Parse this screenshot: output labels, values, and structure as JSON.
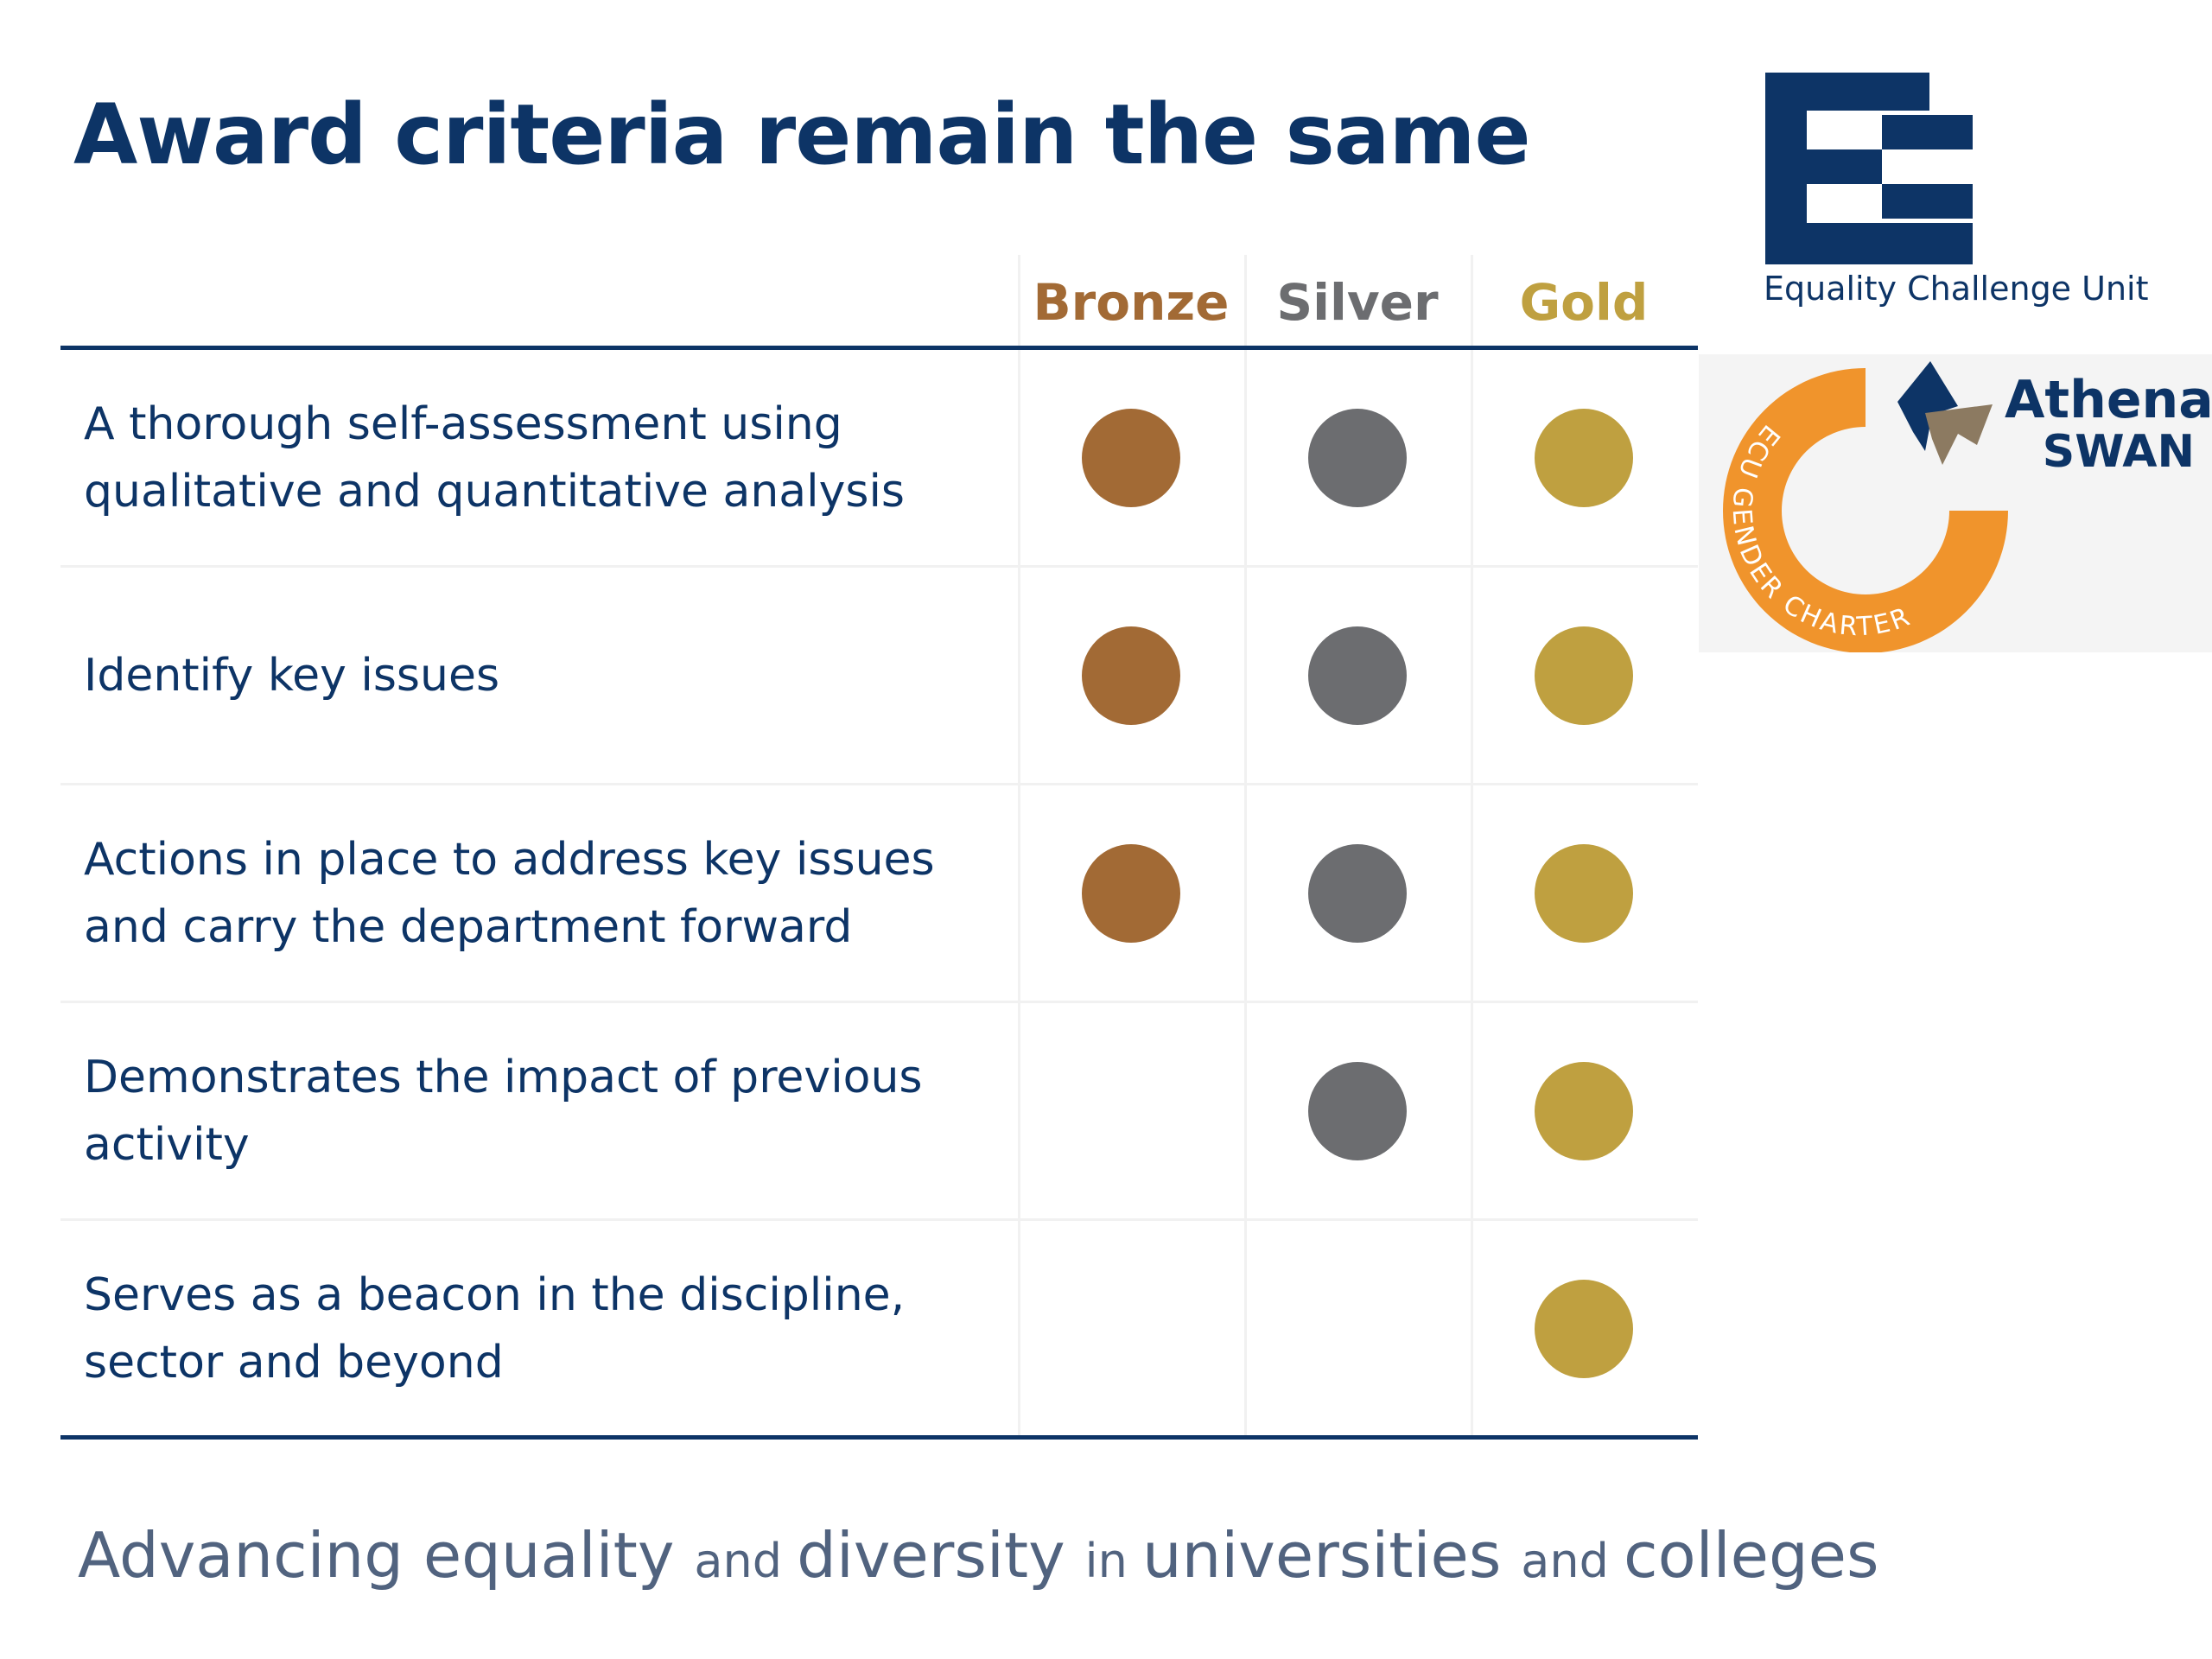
{
  "slide": {
    "title": "Award criteria remain the same",
    "tagline": [
      {
        "text": "Advancing ",
        "size": "big"
      },
      {
        "text": "equality ",
        "size": "big"
      },
      {
        "text": "and ",
        "size": "small"
      },
      {
        "text": "diversity ",
        "size": "big"
      },
      {
        "text": "in ",
        "size": "small"
      },
      {
        "text": "universities ",
        "size": "big"
      },
      {
        "text": "and ",
        "size": "small"
      },
      {
        "text": "colleges",
        "size": "big"
      }
    ]
  },
  "table": {
    "columns": [
      {
        "label": "Bronze",
        "color": "#a26a35"
      },
      {
        "label": "Silver",
        "color": "#6c6d70"
      },
      {
        "label": "Gold",
        "color": "#bfa040"
      }
    ],
    "medal_colors": {
      "bronze": "#a26a35",
      "silver": "#6c6d70",
      "gold": "#bfa040"
    },
    "rows": [
      {
        "criterion": "A thorough self-assessment using qualitative and quantitative analysis",
        "bronze": true,
        "silver": true,
        "gold": true
      },
      {
        "criterion": "Identify key issues",
        "bronze": true,
        "silver": true,
        "gold": true
      },
      {
        "criterion": "Actions in place to address key issues and carry the department forward",
        "bronze": true,
        "silver": true,
        "gold": true
      },
      {
        "criterion": "Demonstrates the impact of previous activity",
        "bronze": false,
        "silver": true,
        "gold": true
      },
      {
        "criterion": "Serves as a beacon in the discipline, sector and beyond",
        "bronze": false,
        "silver": false,
        "gold": true
      }
    ]
  },
  "logos": {
    "ecu": {
      "name": "Equality Challenge Unit",
      "color": "#0d3466"
    },
    "athena_swan": {
      "name_line1": "Athena",
      "name_line2": "SWAN",
      "ring_text": "ECU GENDER CHARTER",
      "ring_color": "#f0942c",
      "arrow_colors": [
        "#0d3466",
        "#8c7a61"
      ]
    }
  }
}
